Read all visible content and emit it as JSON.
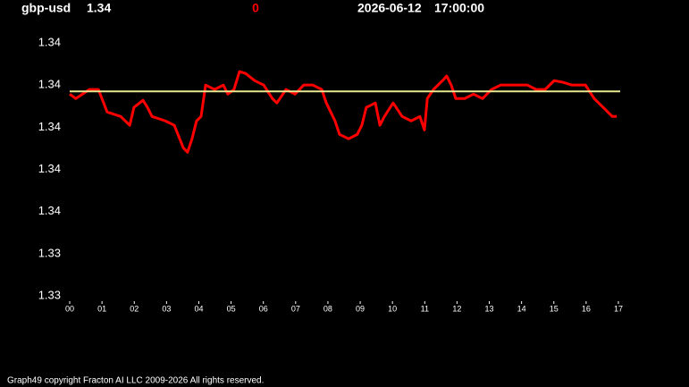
{
  "chart_data": {
    "type": "line",
    "symbol": "gbp-usd",
    "price": 1.34,
    "change": 0,
    "date": "2026-06-12",
    "time": "17:00:00",
    "footer": "Graph49 copyright Fracton AI LLC 2009-2026 All rights reserved.",
    "color": "#ff0000",
    "reference_line": 1.3412,
    "reference_color": "#e8e890",
    "xlim": [
      0,
      17
    ],
    "xticks": [
      {
        "value": 0,
        "label": "00"
      },
      {
        "value": 1,
        "label": "01"
      },
      {
        "value": 2,
        "label": "02"
      },
      {
        "value": 3,
        "label": "03"
      },
      {
        "value": 4,
        "label": "04"
      },
      {
        "value": 5,
        "label": "05"
      },
      {
        "value": 6,
        "label": "06"
      },
      {
        "value": 7,
        "label": "07"
      },
      {
        "value": 8,
        "label": "08"
      },
      {
        "value": 9,
        "label": "09"
      },
      {
        "value": 10,
        "label": "10"
      },
      {
        "value": 11,
        "label": "11"
      },
      {
        "value": 12,
        "label": "12"
      },
      {
        "value": 13,
        "label": "13"
      },
      {
        "value": 14,
        "label": "14"
      },
      {
        "value": 15,
        "label": "15"
      },
      {
        "value": 16,
        "label": "16"
      },
      {
        "value": 17,
        "label": "17"
      }
    ],
    "ylim": [
      1.3315,
      1.3435
    ],
    "yticks": [
      {
        "value": 1.3435,
        "label": "1.34"
      },
      {
        "value": 1.3415,
        "label": "1.34"
      },
      {
        "value": 1.3395,
        "label": "1.34"
      },
      {
        "value": 1.3375,
        "label": "1.34"
      },
      {
        "value": 1.3355,
        "label": "1.34"
      },
      {
        "value": 1.3335,
        "label": "1.33"
      },
      {
        "value": 1.3315,
        "label": "1.33"
      }
    ],
    "x": [
      0,
      0.19,
      0.61,
      0.89,
      1.16,
      1.58,
      1.86,
      1.99,
      2.27,
      2.41,
      2.55,
      2.96,
      3.24,
      3.52,
      3.65,
      3.79,
      3.93,
      4.07,
      4.21,
      4.49,
      4.76,
      4.9,
      5.09,
      5.26,
      5.45,
      5.73,
      6.01,
      6.28,
      6.42,
      6.7,
      6.98,
      7.25,
      7.53,
      7.81,
      7.95,
      8.22,
      8.36,
      8.64,
      8.91,
      9.05,
      9.19,
      9.47,
      9.61,
      9.75,
      10.02,
      10.3,
      10.58,
      10.85,
      10.99,
      11.08,
      11.27,
      11.55,
      11.68,
      11.82,
      11.96,
      12.24,
      12.51,
      12.79,
      13.07,
      13.35,
      13.62,
      13.9,
      14.18,
      14.45,
      14.73,
      15.01,
      15.28,
      15.56,
      15.98,
      16.25,
      16.53,
      16.81,
      16.95
    ],
    "values": [
      1.34107,
      1.34086,
      1.34129,
      1.34129,
      1.34022,
      1.34001,
      1.33959,
      1.34044,
      1.34078,
      1.34044,
      1.34001,
      1.3398,
      1.33959,
      1.33852,
      1.33831,
      1.33895,
      1.3398,
      1.34001,
      1.3415,
      1.34129,
      1.3415,
      1.34107,
      1.34129,
      1.34214,
      1.34205,
      1.34171,
      1.3415,
      1.34086,
      1.34065,
      1.34129,
      1.34107,
      1.3415,
      1.3415,
      1.34129,
      1.34065,
      1.3398,
      1.33916,
      1.33895,
      1.33916,
      1.33959,
      1.34044,
      1.34065,
      1.33959,
      1.34001,
      1.34065,
      1.34001,
      1.3398,
      1.34001,
      1.33937,
      1.34086,
      1.34129,
      1.34171,
      1.34193,
      1.3415,
      1.34086,
      1.34086,
      1.34107,
      1.34086,
      1.34129,
      1.3415,
      1.3415,
      1.3415,
      1.3415,
      1.34129,
      1.34129,
      1.34171,
      1.34163,
      1.3415,
      1.3415,
      1.34086,
      1.34044,
      1.34001,
      1.34001
    ]
  }
}
